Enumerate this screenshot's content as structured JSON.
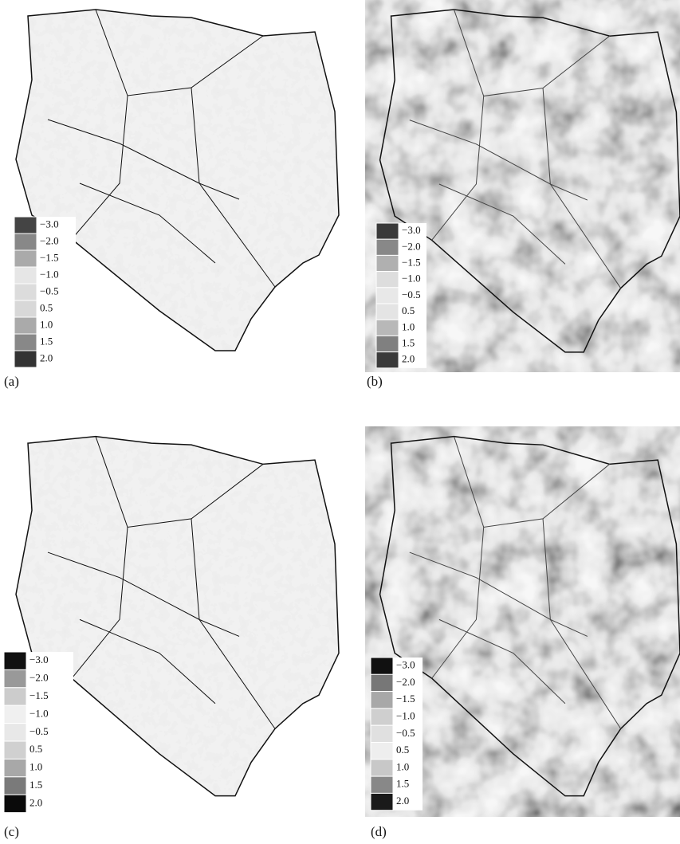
{
  "panels": [
    {
      "label": "(a)",
      "legend": [
        {
          "label": "−3.0",
          "color": "#444444"
        },
        {
          "label": "−2.0",
          "color": "#888888"
        },
        {
          "label": "−1.5",
          "color": "#aaaaaa"
        },
        {
          "label": "−1.0",
          "color": "#e6e6e6"
        },
        {
          "label": "−0.5",
          "color": "#dcdcdc"
        },
        {
          "label": "0.5",
          "color": "#d8d8d8"
        },
        {
          "label": "1.0",
          "color": "#aaaaaa"
        },
        {
          "label": "1.5",
          "color": "#888888"
        },
        {
          "label": "2.0",
          "color": "#333333"
        }
      ]
    },
    {
      "label": "(b)",
      "legend": [
        {
          "label": "−3.0",
          "color": "#3a3a3a"
        },
        {
          "label": "−2.0",
          "color": "#888888"
        },
        {
          "label": "−1.5",
          "color": "#b0b0b0"
        },
        {
          "label": "−1.0",
          "color": "#dddddd"
        },
        {
          "label": "−0.5",
          "color": "#e8e8e8"
        },
        {
          "label": "0.5",
          "color": "#e4e4e4"
        },
        {
          "label": "1.0",
          "color": "#b8b8b8"
        },
        {
          "label": "1.5",
          "color": "#808080"
        },
        {
          "label": "2.0",
          "color": "#3a3a3a"
        }
      ]
    },
    {
      "label": "(c)",
      "legend": [
        {
          "label": "−3.0",
          "color": "#111111"
        },
        {
          "label": "−2.0",
          "color": "#999999"
        },
        {
          "label": "−1.5",
          "color": "#cccccc"
        },
        {
          "label": "−1.0",
          "color": "#f0f0f0"
        },
        {
          "label": "−0.5",
          "color": "#e8e8e8"
        },
        {
          "label": "0.5",
          "color": "#d0d0d0"
        },
        {
          "label": "1.0",
          "color": "#a8a8a8"
        },
        {
          "label": "1.5",
          "color": "#7a7a7a"
        },
        {
          "label": "2.0",
          "color": "#0a0a0a"
        }
      ]
    },
    {
      "label": "(d)",
      "legend": [
        {
          "label": "−3.0",
          "color": "#111111"
        },
        {
          "label": "−2.0",
          "color": "#777777"
        },
        {
          "label": "−1.5",
          "color": "#a8a8a8"
        },
        {
          "label": "−1.0",
          "color": "#cfcfcf"
        },
        {
          "label": "−0.5",
          "color": "#e0e0e0"
        },
        {
          "label": "0.5",
          "color": "#eeeeee"
        },
        {
          "label": "1.0",
          "color": "#c8c8c8"
        },
        {
          "label": "1.5",
          "color": "#888888"
        },
        {
          "label": "2.0",
          "color": "#1a1a1a"
        }
      ]
    }
  ]
}
